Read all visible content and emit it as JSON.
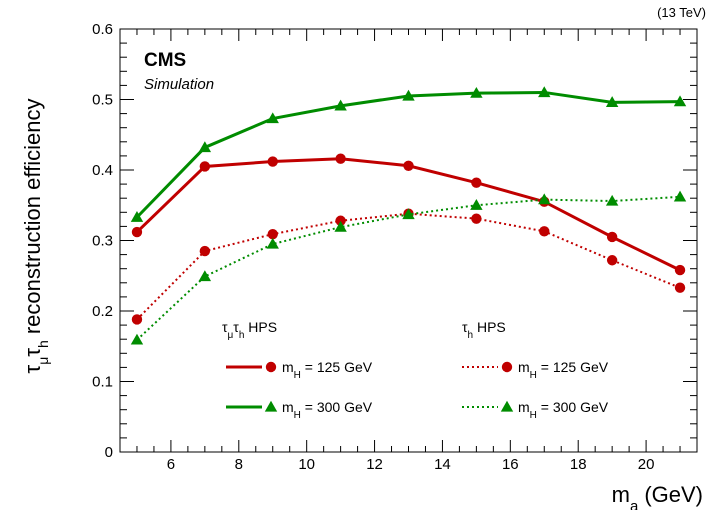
{
  "chart_data": {
    "type": "line",
    "energy_label": "(13 TeV)",
    "cms_label": "CMS",
    "simulation_label": "Simulation",
    "xlabel": {
      "main": "m",
      "sub": "a",
      "unit": "(GeV)"
    },
    "ylabel": {
      "tau1": "τ",
      "sub1": "μ",
      "tau2": "τ",
      "sub2": "h",
      "rest": "reconstruction efficiency"
    },
    "xlim": [
      4.5,
      21.5
    ],
    "ylim": [
      0,
      0.6
    ],
    "xticks": [
      6,
      8,
      10,
      12,
      14,
      16,
      18,
      20
    ],
    "yticks": [
      0,
      0.1,
      0.2,
      0.3,
      0.4,
      0.5,
      0.6
    ],
    "ytick_labels": [
      "0",
      "0.1",
      "0.2",
      "0.3",
      "0.4",
      "0.5",
      "0.6"
    ],
    "x": [
      5,
      7,
      9,
      11,
      13,
      15,
      17,
      19,
      21
    ],
    "legend": {
      "group1_header": {
        "t1": "τ",
        "s1": "μ",
        "t2": "τ",
        "s2": "h",
        "rest": " HPS"
      },
      "group2_header": {
        "t1": "τ",
        "s1": "h",
        "rest": " HPS"
      }
    },
    "series": [
      {
        "id": "mumu125",
        "group": 1,
        "label_main": "m",
        "label_sub": "H",
        "label_rest": " = 125 GeV",
        "color": "#c00000",
        "marker": "circle",
        "dash": "solid",
        "values": [
          0.312,
          0.405,
          0.412,
          0.416,
          0.406,
          0.382,
          0.355,
          0.305,
          0.258
        ]
      },
      {
        "id": "mumu300",
        "group": 1,
        "label_main": "m",
        "label_sub": "H",
        "label_rest": " = 300 GeV",
        "color": "#008c00",
        "marker": "triangle",
        "dash": "solid",
        "values": [
          0.333,
          0.432,
          0.473,
          0.491,
          0.505,
          0.509,
          0.51,
          0.496,
          0.497
        ]
      },
      {
        "id": "h125",
        "group": 2,
        "label_main": "m",
        "label_sub": "H",
        "label_rest": " = 125 GeV",
        "color": "#c00000",
        "marker": "circle",
        "dash": "dotted",
        "values": [
          0.188,
          0.285,
          0.309,
          0.328,
          0.338,
          0.331,
          0.313,
          0.272,
          0.233
        ]
      },
      {
        "id": "h300",
        "group": 2,
        "label_main": "m",
        "label_sub": "H",
        "label_rest": " = 300 GeV",
        "color": "#008c00",
        "marker": "triangle",
        "dash": "dotted",
        "values": [
          0.159,
          0.249,
          0.295,
          0.319,
          0.337,
          0.35,
          0.358,
          0.356,
          0.362
        ]
      }
    ]
  }
}
